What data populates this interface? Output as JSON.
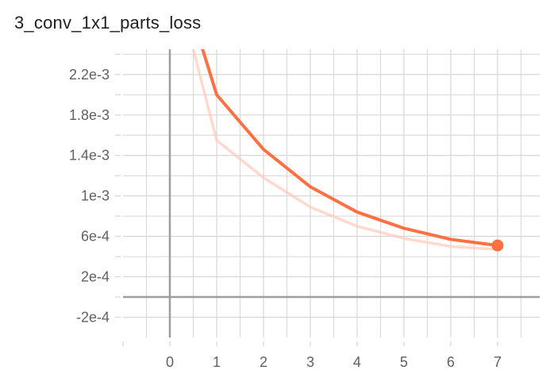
{
  "title": "3_conv_1x1_parts_loss",
  "colors": {
    "series": "#ff7043",
    "raw_series": "#ffccbc",
    "grid": "#d6d6d6",
    "axis": "#9e9e9e",
    "text": "#212121",
    "tick": "#616161"
  },
  "chart_data": {
    "type": "line",
    "title": "3_conv_1x1_parts_loss",
    "xlabel": "",
    "ylabel": "",
    "xlim": [
      -1,
      7.9
    ],
    "ylim": [
      -0.0004,
      0.00245
    ],
    "x_ticks": [
      0,
      1,
      2,
      3,
      4,
      5,
      6,
      7
    ],
    "x_tick_labels": [
      "0",
      "1",
      "2",
      "3",
      "4",
      "5",
      "6",
      "7"
    ],
    "y_ticks": [
      -0.0002,
      0.0002,
      0.0006,
      0.001,
      0.0014,
      0.0018,
      0.0022
    ],
    "y_tick_labels": [
      "-2e-4",
      "2e-4",
      "6e-4",
      "1e-3",
      "1.4e-3",
      "1.8e-3",
      "2.2e-3"
    ],
    "grid": true,
    "series": [
      {
        "style": "smoothed",
        "x": [
          0.7,
          1,
          2,
          3,
          4,
          5,
          6,
          7
        ],
        "y": [
          0.00245,
          0.002,
          0.00146,
          0.00109,
          0.00084,
          0.00068,
          0.00057,
          0.00051
        ]
      },
      {
        "style": "raw",
        "x": [
          0.5,
          1,
          2,
          3,
          4,
          5,
          6,
          7
        ],
        "y": [
          0.00245,
          0.00155,
          0.00118,
          0.00089,
          0.0007,
          0.00058,
          0.0005,
          0.00047
        ]
      }
    ],
    "last_point": {
      "x": 7,
      "y": 0.00051
    }
  }
}
